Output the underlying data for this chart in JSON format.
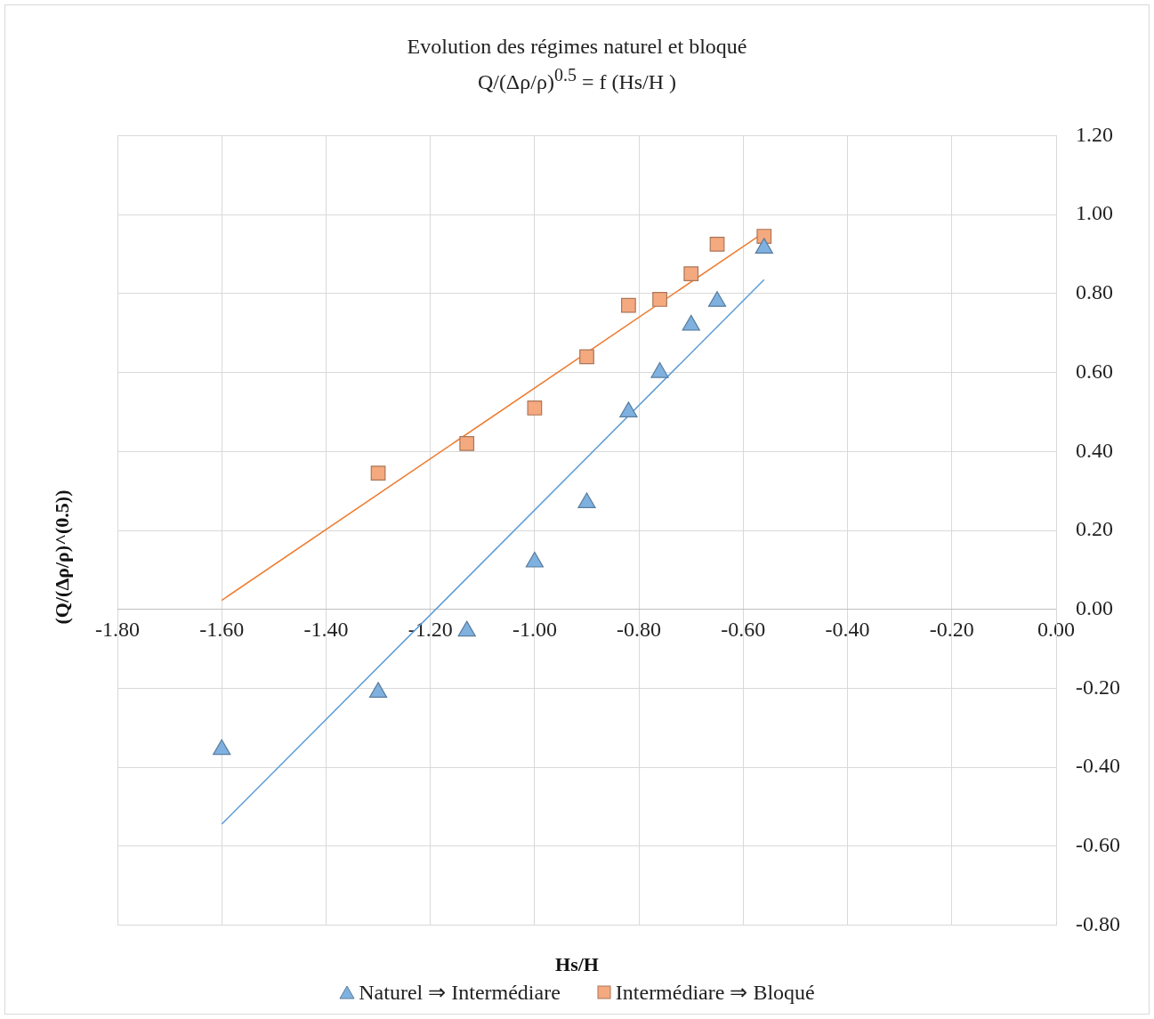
{
  "chart_data": {
    "type": "scatter",
    "title": "Evolution des régimes naturel et bloqué",
    "subtitle": "Q/(Δρ/ρ)$^{0.5}$   =   f (Hs/H )",
    "xlabel": "Hs/H",
    "ylabel": "(Q/(Δρ/ρ)^(0.5))",
    "series": [
      {
        "name": "Naturel ⇒ Intermédiare",
        "type": "scatter",
        "marker": "triangle",
        "color": "#7fb1e0",
        "x": [
          -1.6,
          -1.3,
          -1.13,
          -1.0,
          -0.9,
          -0.82,
          -0.76,
          -0.7,
          -0.65,
          -0.56
        ],
        "values": [
          -0.355,
          -0.21,
          -0.055,
          0.12,
          0.27,
          0.5,
          0.6,
          0.72,
          0.78,
          0.915
        ]
      },
      {
        "name": "Intermédiare ⇒ Bloqué",
        "type": "scatter",
        "marker": "square",
        "color": "#f4a97f",
        "x": [
          -1.3,
          -1.13,
          -1.0,
          -0.9,
          -0.82,
          -0.76,
          -0.7,
          -0.65,
          -0.56
        ],
        "values": [
          0.345,
          0.42,
          0.51,
          0.64,
          0.77,
          0.785,
          0.85,
          0.925,
          0.945
        ]
      },
      {
        "type": "line",
        "marker": "none",
        "color": "#5b9bd5",
        "x": [
          -1.6,
          -0.56
        ],
        "values": [
          -0.544,
          0.835
        ]
      },
      {
        "type": "line",
        "marker": "none",
        "color": "#ed7d31",
        "x": [
          -1.6,
          -0.56
        ],
        "values": [
          0.023,
          0.955
        ]
      }
    ],
    "xlim": [
      -1.8,
      0
    ],
    "xticks": [
      {
        "value": -1.8,
        "label": "-1.80"
      },
      {
        "value": -1.6,
        "label": "-1.60"
      },
      {
        "value": -1.4,
        "label": "-1.40"
      },
      {
        "value": -1.2,
        "label": "-1.20"
      },
      {
        "value": -1.0,
        "label": "-1.00"
      },
      {
        "value": -0.8,
        "label": "-0.80"
      },
      {
        "value": -0.6,
        "label": "-0.60"
      },
      {
        "value": -0.4,
        "label": "-0.40"
      },
      {
        "value": -0.2,
        "label": "-0.20"
      },
      {
        "value": 0,
        "label": "0.00"
      }
    ],
    "ylim": [
      -0.8,
      1.2
    ],
    "yticks": [
      {
        "value": -0.8,
        "label": "-0.80"
      },
      {
        "value": -0.6,
        "label": "-0.60"
      },
      {
        "value": -0.4,
        "label": "-0.40"
      },
      {
        "value": -0.2,
        "label": "-0.20"
      },
      {
        "value": 0,
        "label": "0.00"
      },
      {
        "value": 0.2,
        "label": "0.20"
      },
      {
        "value": 0.4,
        "label": "0.40"
      },
      {
        "value": 0.6,
        "label": "0.60"
      },
      {
        "value": 0.8,
        "label": "0.80"
      },
      {
        "value": 1.0,
        "label": "1.00"
      },
      {
        "value": 1.2,
        "label": "1.20"
      }
    ],
    "grid": true,
    "legend": "bottom"
  }
}
